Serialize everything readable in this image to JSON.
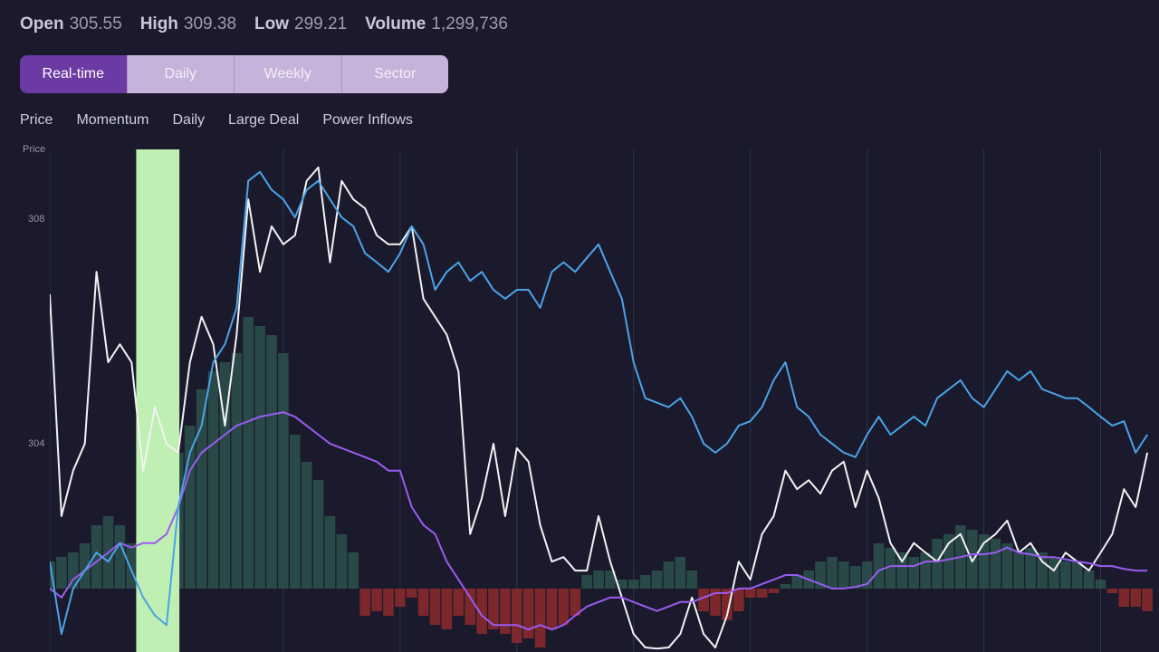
{
  "header": {
    "stats": [
      {
        "label": "Open",
        "value": "305.55"
      },
      {
        "label": "High",
        "value": "309.38"
      },
      {
        "label": "Low",
        "value": "299.21"
      },
      {
        "label": "Volume",
        "value": "1,299,736"
      }
    ]
  },
  "tabs": {
    "items": [
      "Real-time",
      "Daily",
      "Weekly",
      "Sector"
    ],
    "active": 0
  },
  "chart_data": {
    "type": "line",
    "y_label": "Price",
    "x": [
      0,
      1,
      2,
      3,
      4,
      5,
      6,
      7,
      8,
      9,
      10,
      11,
      12,
      13,
      14,
      15,
      16,
      17,
      18,
      19,
      20,
      21,
      22,
      23,
      24,
      25,
      26,
      27,
      28,
      29,
      30,
      31,
      32,
      33,
      34,
      35,
      36,
      37,
      38,
      39,
      40,
      41,
      42,
      43,
      44,
      45,
      46,
      47,
      48,
      49,
      50,
      51,
      52,
      53,
      54,
      55,
      56,
      57,
      58,
      59,
      60,
      61,
      62,
      63,
      64,
      65,
      66,
      67,
      68,
      69,
      70,
      71,
      72,
      73,
      74,
      75,
      76,
      77,
      78,
      79,
      80,
      81,
      82,
      83,
      84,
      85,
      86,
      87,
      88,
      89,
      90,
      91,
      92,
      93,
      94
    ],
    "xlim": [
      0,
      95
    ],
    "xticks": [
      0,
      10,
      20,
      30,
      40,
      50,
      60,
      70,
      80,
      90
    ],
    "ylim": [
      300.29,
      309.24
    ],
    "yticks": [
      308,
      304
    ],
    "y2lim": [
      -70,
      485
    ],
    "grid": true,
    "series": [
      {
        "name": "Price",
        "type": "line",
        "color": "#f2f2f4",
        "values": [
          306.66,
          302.71,
          303.52,
          304.0,
          307.06,
          305.45,
          305.77,
          305.45,
          303.52,
          304.65,
          304.0,
          303.84,
          305.45,
          306.26,
          305.77,
          304.32,
          305.94,
          308.35,
          307.06,
          307.87,
          307.55,
          307.71,
          308.68,
          308.92,
          307.23,
          308.68,
          308.35,
          308.19,
          307.71,
          307.55,
          307.55,
          307.87,
          306.58,
          306.26,
          305.94,
          305.29,
          302.39,
          303.03,
          304.0,
          302.71,
          303.92,
          303.68,
          302.55,
          301.9,
          301.98,
          301.74,
          301.74,
          302.71,
          301.9,
          301.26,
          300.61,
          300.37,
          300.35,
          300.37,
          300.61,
          301.26,
          300.61,
          300.37,
          300.94,
          301.9,
          301.58,
          302.39,
          302.71,
          303.52,
          303.19,
          303.35,
          303.11,
          303.52,
          303.68,
          302.87,
          303.52,
          303.03,
          302.23,
          301.9,
          302.23,
          302.06,
          301.9,
          302.23,
          302.39,
          301.9,
          302.23,
          302.39,
          302.63,
          302.06,
          302.23,
          301.9,
          301.74,
          302.06,
          301.9,
          301.74,
          302.06,
          302.39,
          303.19,
          302.87,
          303.84
        ]
      },
      {
        "name": "Momentum",
        "type": "bar",
        "axis": "y2",
        "color": "#2c524e",
        "negative_color": "#8e2a2c",
        "values": [
          30,
          35,
          40,
          50,
          70,
          80,
          70,
          50,
          80,
          100,
          120,
          150,
          180,
          220,
          240,
          250,
          260,
          300,
          290,
          280,
          260,
          170,
          140,
          120,
          80,
          60,
          40,
          -30,
          -25,
          -30,
          -20,
          -10,
          -30,
          -40,
          -45,
          -30,
          -40,
          -50,
          -45,
          -50,
          -60,
          -55,
          -65,
          -45,
          -40,
          -30,
          15,
          20,
          20,
          10,
          10,
          15,
          20,
          30,
          35,
          20,
          -25,
          -30,
          -35,
          -25,
          -10,
          -10,
          -5,
          5,
          15,
          20,
          30,
          35,
          30,
          25,
          30,
          50,
          45,
          40,
          35,
          40,
          55,
          60,
          70,
          65,
          60,
          55,
          50,
          40,
          45,
          40,
          35,
          30,
          30,
          20,
          10,
          -5,
          -20,
          -20,
          -25
        ]
      },
      {
        "name": "Daily",
        "type": "line",
        "color": "#9a5cf0",
        "values": [
          301.42,
          301.26,
          301.58,
          301.74,
          301.9,
          302.06,
          302.23,
          302.15,
          302.23,
          302.23,
          302.39,
          302.87,
          303.52,
          303.84,
          304.0,
          304.16,
          304.32,
          304.4,
          304.48,
          304.52,
          304.56,
          304.48,
          304.32,
          304.16,
          304.0,
          303.92,
          303.84,
          303.76,
          303.68,
          303.52,
          303.52,
          302.87,
          302.55,
          302.39,
          301.9,
          301.58,
          301.26,
          300.94,
          300.77,
          300.77,
          300.77,
          300.69,
          300.77,
          300.69,
          300.77,
          300.94,
          301.1,
          301.18,
          301.26,
          301.26,
          301.18,
          301.1,
          301.02,
          301.1,
          301.18,
          301.18,
          301.26,
          301.34,
          301.34,
          301.42,
          301.42,
          301.5,
          301.58,
          301.66,
          301.66,
          301.58,
          301.5,
          301.42,
          301.42,
          301.45,
          301.5,
          301.74,
          301.82,
          301.82,
          301.82,
          301.9,
          301.9,
          301.94,
          301.98,
          302.03,
          302.03,
          302.06,
          302.15,
          302.06,
          302.03,
          301.98,
          301.98,
          301.94,
          301.9,
          301.87,
          301.82,
          301.82,
          301.77,
          301.74,
          301.74
        ]
      },
      {
        "name": "Large Deal",
        "type": "line",
        "color": "#4aa3e8",
        "values": [
          301.9,
          300.61,
          301.42,
          301.74,
          302.06,
          301.9,
          302.23,
          301.74,
          301.26,
          300.94,
          300.77,
          302.87,
          303.84,
          304.32,
          305.45,
          305.77,
          306.42,
          308.68,
          308.84,
          308.52,
          308.35,
          308.03,
          308.52,
          308.68,
          308.35,
          308.03,
          307.87,
          307.39,
          307.23,
          307.06,
          307.39,
          307.87,
          307.55,
          306.74,
          307.06,
          307.23,
          306.9,
          307.06,
          306.74,
          306.58,
          306.74,
          306.74,
          306.42,
          307.06,
          307.23,
          307.06,
          307.31,
          307.55,
          307.06,
          306.58,
          305.45,
          304.81,
          304.73,
          304.65,
          304.81,
          304.48,
          304.0,
          303.84,
          304.0,
          304.32,
          304.4,
          304.65,
          305.13,
          305.45,
          304.65,
          304.48,
          304.16,
          304.0,
          303.84,
          303.76,
          304.16,
          304.48,
          304.16,
          304.32,
          304.48,
          304.32,
          304.81,
          304.97,
          305.13,
          304.81,
          304.65,
          304.97,
          305.29,
          305.13,
          305.29,
          304.97,
          304.89,
          304.81,
          304.81,
          304.65,
          304.48,
          304.32,
          304.4,
          303.84,
          304.16
        ]
      },
      {
        "name": "Power Inflows",
        "type": "band",
        "color": "#345e33",
        "band_color": "#bfefb2",
        "band": [
          7.4,
          11.1
        ]
      }
    ]
  }
}
